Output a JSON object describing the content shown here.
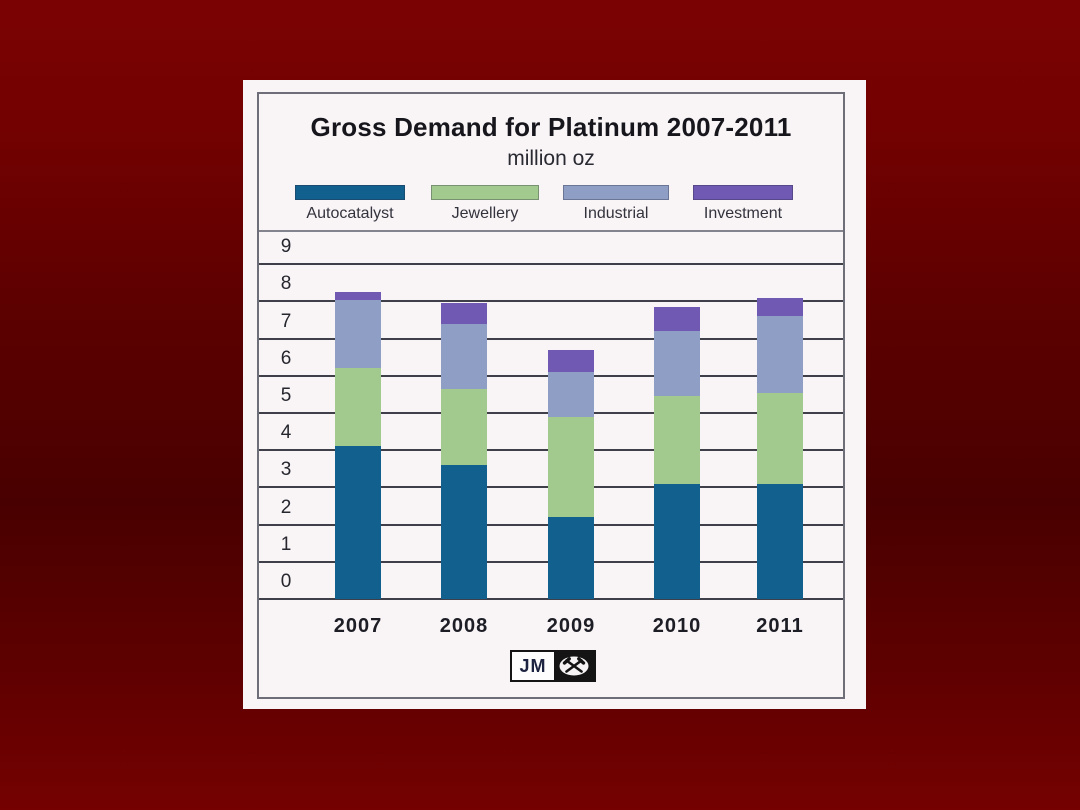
{
  "page": {
    "background_top": "#7b0202",
    "background_mid": "#490000",
    "background_bottom": "#750101",
    "panel_background": "#f9f4f6"
  },
  "chart_data": {
    "type": "bar",
    "stacked": true,
    "title": "Gross Demand for Platinum 2007-2011",
    "subtitle": "million oz",
    "categories": [
      "2007",
      "2008",
      "2009",
      "2010",
      "2011"
    ],
    "series": [
      {
        "name": "Autocatalyst",
        "color": "#11608d",
        "values": [
          4.1,
          3.6,
          2.2,
          3.1,
          3.1
        ]
      },
      {
        "name": "Jewellery",
        "color": "#a2ca8e",
        "values": [
          2.1,
          2.05,
          2.7,
          2.35,
          2.45
        ]
      },
      {
        "name": "Industrial",
        "color": "#8f9ec5",
        "values": [
          1.85,
          1.75,
          1.2,
          1.75,
          2.05
        ]
      },
      {
        "name": "Investment",
        "color": "#7059b3",
        "values": [
          0.2,
          0.55,
          0.6,
          0.65,
          0.5
        ]
      }
    ],
    "totals": [
      8.25,
      7.95,
      6.7,
      7.85,
      8.1
    ],
    "ylim": [
      0,
      9
    ],
    "yticks": [
      0,
      1,
      2,
      3,
      4,
      5,
      6,
      7,
      8,
      9
    ],
    "grid": true,
    "legend_position": "top",
    "gridline_color": "#3f3f49"
  },
  "logo": {
    "text": "JM",
    "icon": "crossed-hammers"
  }
}
